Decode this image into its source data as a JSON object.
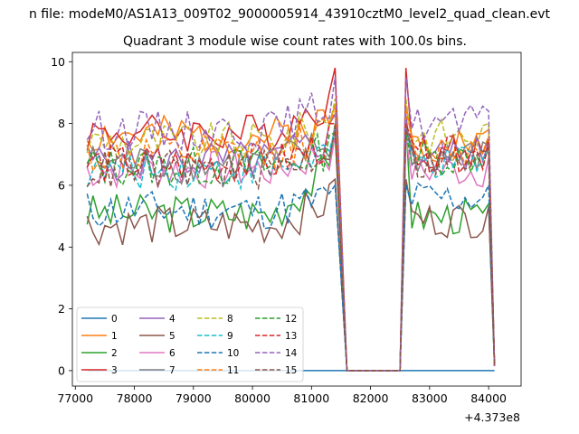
{
  "suptitle": "n file: modeM0/AS1A13_009T02_9000005914_43910cztM0_level2_quad_clean.evt",
  "chart_data": {
    "type": "line",
    "title": "Quadrant 3 module wise count rates with 100.0s bins.",
    "xlabel": "",
    "ylabel": "",
    "x_offset_label": "+4.373e8",
    "xlim": [
      76950,
      84550
    ],
    "ylim": [
      -0.5,
      10.3
    ],
    "xticks": [
      77000,
      78000,
      79000,
      80000,
      81000,
      82000,
      83000,
      84000
    ],
    "yticks": [
      0,
      2,
      4,
      6,
      8,
      10
    ],
    "grid": false,
    "legend": {
      "placement": "lower-left",
      "columns": 4
    },
    "segments": [
      {
        "start": 77200,
        "end": 81400,
        "step": 100
      },
      {
        "start": 81600,
        "end": 82500,
        "step": 100
      },
      {
        "start": 82600,
        "end": 84000,
        "step": 100
      },
      {
        "start": 84100,
        "end": 84100,
        "step": 100
      }
    ],
    "series": [
      {
        "name": "0",
        "color": "#1f77b4",
        "dash": "solid",
        "level1": 0,
        "level2": 0,
        "peak": 0,
        "seed": 1
      },
      {
        "name": "1",
        "color": "#ff7f0e",
        "dash": "solid",
        "level1": 7.6,
        "level2": 7.4,
        "peak": 8.6,
        "seed": 2
      },
      {
        "name": "2",
        "color": "#2ca02c",
        "dash": "solid",
        "level1": 5.1,
        "level2": 5.0,
        "peak": 8.0,
        "seed": 3
      },
      {
        "name": "3",
        "color": "#d62728",
        "dash": "solid",
        "level1": 7.7,
        "level2": 7.1,
        "peak": 9.8,
        "seed": 4
      },
      {
        "name": "4",
        "color": "#9467bd",
        "dash": "solid",
        "level1": 6.8,
        "level2": 7.0,
        "peak": 8.3,
        "seed": 5
      },
      {
        "name": "5",
        "color": "#8c564b",
        "dash": "solid",
        "level1": 4.7,
        "level2": 4.9,
        "peak": 6.2,
        "seed": 6
      },
      {
        "name": "6",
        "color": "#e377c2",
        "dash": "solid",
        "level1": 6.5,
        "level2": 6.5,
        "peak": 7.6,
        "seed": 7
      },
      {
        "name": "7",
        "color": "#7f7f7f",
        "dash": "solid",
        "level1": 6.7,
        "level2": 6.9,
        "peak": 7.9,
        "seed": 8
      },
      {
        "name": "8",
        "color": "#bcbd22",
        "dash": "dashed",
        "level1": 7.4,
        "level2": 7.6,
        "peak": 8.8,
        "seed": 9
      },
      {
        "name": "9",
        "color": "#17becf",
        "dash": "dashed",
        "level1": 6.5,
        "level2": 6.7,
        "peak": 7.8,
        "seed": 10
      },
      {
        "name": "10",
        "color": "#1f77b4",
        "dash": "dashed",
        "level1": 5.2,
        "level2": 5.6,
        "peak": 6.0,
        "seed": 11
      },
      {
        "name": "11",
        "color": "#ff7f0e",
        "dash": "dashed",
        "level1": 7.0,
        "level2": 7.2,
        "peak": 8.4,
        "seed": 12
      },
      {
        "name": "12",
        "color": "#2ca02c",
        "dash": "dashed",
        "level1": 6.6,
        "level2": 6.9,
        "peak": 7.7,
        "seed": 13
      },
      {
        "name": "13",
        "color": "#d62728",
        "dash": "dashed",
        "level1": 6.7,
        "level2": 7.0,
        "peak": 8.0,
        "seed": 14
      },
      {
        "name": "14",
        "color": "#9467bd",
        "dash": "dashed",
        "level1": 7.8,
        "level2": 8.0,
        "peak": 9.5,
        "seed": 15
      },
      {
        "name": "15",
        "color": "#8c564b",
        "dash": "dashed",
        "level1": 6.5,
        "level2": 6.7,
        "peak": 7.8,
        "seed": 16
      }
    ]
  }
}
